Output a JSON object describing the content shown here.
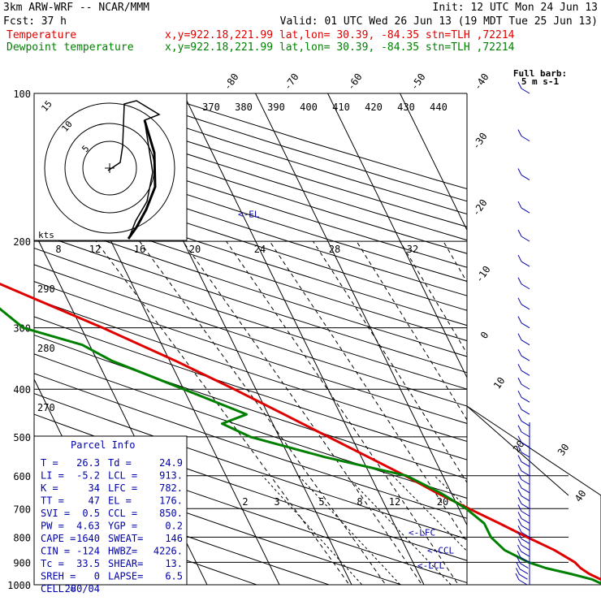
{
  "header": {
    "model": "3km ARW-WRF -- NCAR/MMM",
    "init": "Init: 12 UTC Mon 24 Jun 13",
    "fcst_label": "Fcst:",
    "fcst_value": "37 h",
    "valid": "Valid: 01 UTC Wed 26 Jun 13 (19 MDT Tue 25 Jun 13)",
    "temp_label": "Temperature",
    "dew_label": "Dewpoint temperature",
    "info_line": "x,y=922.18,221.99   lat,lon= 30.39, -84.35   stn=TLH ,72214"
  },
  "colors": {
    "temperature": "#e00000",
    "dewpoint": "#008000",
    "annotation": "#0000aa"
  },
  "chart_data": {
    "type": "line",
    "pressure_levels": [
      "100",
      "200",
      "300",
      "400",
      "500",
      "600",
      "700",
      "800",
      "900",
      "1000"
    ],
    "temperature_ticks_top": [
      "-80",
      "-70",
      "-60",
      "-50",
      "-40"
    ],
    "temperature_ticks_right": [
      "-30",
      "-20",
      "-10",
      "0",
      "10",
      "20",
      "30",
      "40"
    ],
    "theta_labels": [
      "370",
      "380",
      "390",
      "400",
      "410",
      "420",
      "430",
      "440"
    ],
    "mixing_ratio_labels": [
      "2",
      "3",
      "5",
      "8",
      "12",
      "20"
    ],
    "dry_adiabat_labels": [
      "290",
      "280",
      "270"
    ],
    "series": [
      {
        "name": "Temperature",
        "points": [
          [
            1000,
            26.3
          ],
          [
            975,
            24.8
          ],
          [
            950,
            23.6
          ],
          [
            925,
            22.8
          ],
          [
            900,
            22.4
          ],
          [
            850,
            20.4
          ],
          [
            800,
            17.5
          ],
          [
            750,
            14.6
          ],
          [
            700,
            11.4
          ],
          [
            650,
            8.0
          ],
          [
            600,
            4.8
          ],
          [
            550,
            1.0
          ],
          [
            500,
            -3.2
          ],
          [
            450,
            -7.8
          ],
          [
            400,
            -13.0
          ],
          [
            350,
            -19.2
          ],
          [
            300,
            -27.0
          ],
          [
            250,
            -37.0
          ],
          [
            200,
            -49.0
          ],
          [
            175,
            -55.0
          ],
          [
            150,
            -60.0
          ],
          [
            125,
            -64.0
          ],
          [
            110,
            -66.0
          ],
          [
            100,
            -66.5
          ]
        ]
      },
      {
        "name": "Dewpoint temperature",
        "points": [
          [
            1000,
            24.9
          ],
          [
            975,
            23.6
          ],
          [
            950,
            21.0
          ],
          [
            925,
            18.0
          ],
          [
            900,
            16.0
          ],
          [
            850,
            13.5
          ],
          [
            800,
            12.5
          ],
          [
            750,
            12.5
          ],
          [
            700,
            11.0
          ],
          [
            650,
            8.5
          ],
          [
            600,
            5.0
          ],
          [
            550,
            -5.0
          ],
          [
            500,
            -14.0
          ],
          [
            470,
            -17.0
          ],
          [
            450,
            -13.0
          ],
          [
            400,
            -20.0
          ],
          [
            350,
            -28.0
          ],
          [
            325,
            -31.0
          ],
          [
            300,
            -38.0
          ],
          [
            250,
            -42.0
          ],
          [
            200,
            -56.0
          ],
          [
            175,
            -64.0
          ],
          [
            150,
            -73.0
          ],
          [
            130,
            -79.0
          ],
          [
            110,
            -81.0
          ],
          [
            100,
            -82.0
          ]
        ]
      }
    ],
    "annotations": [
      {
        "label": "<-EL",
        "pressure": 176
      },
      {
        "label": "<-LFC",
        "pressure": 782
      },
      {
        "label": "<-CCL",
        "pressure": 850
      },
      {
        "label": "<-LCL",
        "pressure": 913
      }
    ],
    "hodograph": {
      "units_label": "kts",
      "rings": [
        "5",
        "10",
        "15"
      ],
      "speed_labels": [
        "8",
        "12",
        "16",
        "20",
        "24",
        "28",
        "32"
      ]
    },
    "wind_label": {
      "line1": "Full barb:",
      "line2": "5 m s-1"
    }
  },
  "parcel_info": {
    "title": "Parcel Info",
    "rows": [
      [
        "T  =",
        "26.3",
        "Td =",
        "24.9"
      ],
      [
        "LI =",
        "-5.2",
        "LCL =",
        "913."
      ],
      [
        "K  =",
        "34",
        "LFC =",
        "782."
      ],
      [
        "TT =",
        "47",
        "EL =",
        "176."
      ],
      [
        "SVI =",
        "0.5",
        "CCL =",
        "850."
      ],
      [
        "PW =",
        "4.63",
        "YGP =",
        "0.2"
      ],
      [
        "CAPE =",
        "1640",
        "SWEAT=",
        "146"
      ],
      [
        "CIN =",
        "-124",
        "HWBZ=",
        "4226."
      ],
      [
        "Tc =",
        "33.5",
        "SHEAR=",
        "13."
      ],
      [
        "SREH =",
        "0",
        "LAPSE=",
        "6.5"
      ],
      [
        "CELL =",
        "280/04",
        "",
        ""
      ]
    ]
  }
}
